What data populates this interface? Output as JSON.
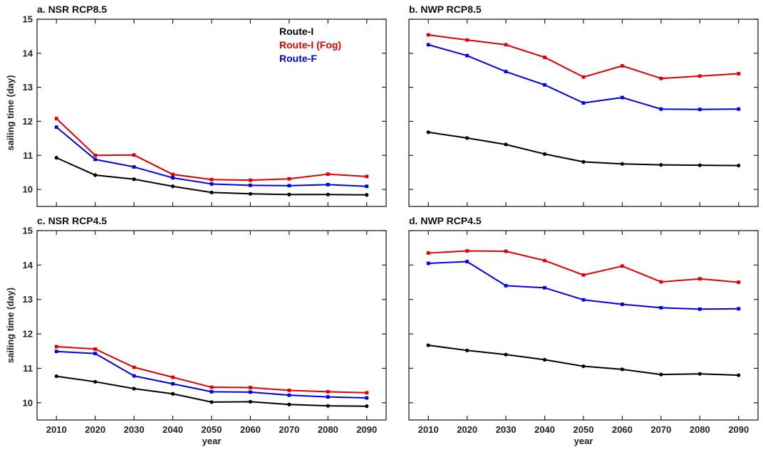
{
  "chart_data": [
    {
      "type": "line",
      "title": "a. NSR RCP8.5",
      "xlabel": "",
      "ylabel": "sailing time (day)",
      "x": [
        2010,
        2020,
        2030,
        2040,
        2050,
        2060,
        2070,
        2080,
        2090
      ],
      "xlim": [
        2005,
        2095
      ],
      "ylim": [
        9.5,
        15
      ],
      "yticks": [
        10,
        11,
        12,
        13,
        14,
        15
      ],
      "legend": "top-right",
      "series": [
        {
          "name": "Route-I",
          "color": "#000000",
          "values": [
            10.93,
            10.42,
            10.3,
            10.09,
            9.91,
            9.87,
            9.85,
            9.85,
            9.84
          ]
        },
        {
          "name": "Route-I (Fog)",
          "color": "#e00000",
          "values": [
            12.08,
            11.0,
            11.01,
            10.44,
            10.29,
            10.27,
            10.31,
            10.45,
            10.38
          ]
        },
        {
          "name": "Route-F",
          "color": "#0000e6",
          "values": [
            11.83,
            10.88,
            10.66,
            10.34,
            10.16,
            10.12,
            10.11,
            10.14,
            10.09
          ]
        }
      ]
    },
    {
      "type": "line",
      "title": "b. NWP RCP8.5",
      "xlabel": "",
      "ylabel": "",
      "x": [
        2010,
        2020,
        2030,
        2040,
        2050,
        2060,
        2070,
        2080,
        2090
      ],
      "xlim": [
        2005,
        2095
      ],
      "ylim": [
        9.5,
        15
      ],
      "yticks": [
        10,
        11,
        12,
        13,
        14,
        15
      ],
      "series": [
        {
          "name": "Route-I",
          "color": "#000000",
          "values": [
            11.68,
            11.51,
            11.32,
            11.04,
            10.81,
            10.75,
            10.72,
            10.71,
            10.7
          ]
        },
        {
          "name": "Route-I (Fog)",
          "color": "#e00000",
          "values": [
            14.54,
            14.39,
            14.25,
            13.88,
            13.3,
            13.63,
            13.26,
            13.33,
            13.4
          ]
        },
        {
          "name": "Route-F",
          "color": "#0000e6",
          "values": [
            14.25,
            13.93,
            13.46,
            13.07,
            12.54,
            12.7,
            12.36,
            12.35,
            12.36
          ]
        }
      ]
    },
    {
      "type": "line",
      "title": "c. NSR RCP4.5",
      "xlabel": "year",
      "ylabel": "sailing time (day)",
      "x": [
        2010,
        2020,
        2030,
        2040,
        2050,
        2060,
        2070,
        2080,
        2090
      ],
      "xlim": [
        2005,
        2095
      ],
      "ylim": [
        9.5,
        15
      ],
      "yticks": [
        10,
        11,
        12,
        13,
        14,
        15
      ],
      "series": [
        {
          "name": "Route-I",
          "color": "#000000",
          "values": [
            10.77,
            10.61,
            10.41,
            10.26,
            10.02,
            10.03,
            9.95,
            9.91,
            9.9
          ]
        },
        {
          "name": "Route-I (Fog)",
          "color": "#e00000",
          "values": [
            11.63,
            11.56,
            11.03,
            10.74,
            10.45,
            10.44,
            10.36,
            10.32,
            10.29
          ]
        },
        {
          "name": "Route-F",
          "color": "#0000e6",
          "values": [
            11.49,
            11.43,
            10.78,
            10.55,
            10.32,
            10.31,
            10.22,
            10.17,
            10.14
          ]
        }
      ]
    },
    {
      "type": "line",
      "title": "d. NWP RCP4.5",
      "xlabel": "year",
      "ylabel": "",
      "x": [
        2010,
        2020,
        2030,
        2040,
        2050,
        2060,
        2070,
        2080,
        2090
      ],
      "xlim": [
        2005,
        2095
      ],
      "ylim": [
        9.5,
        15
      ],
      "yticks": [
        10,
        11,
        12,
        13,
        14,
        15
      ],
      "series": [
        {
          "name": "Route-I",
          "color": "#000000",
          "values": [
            11.67,
            11.52,
            11.4,
            11.25,
            11.06,
            10.97,
            10.82,
            10.84,
            10.8
          ]
        },
        {
          "name": "Route-I (Fog)",
          "color": "#e00000",
          "values": [
            14.35,
            14.41,
            14.4,
            14.13,
            13.71,
            13.97,
            13.51,
            13.6,
            13.5
          ]
        },
        {
          "name": "Route-F",
          "color": "#0000e6",
          "values": [
            14.05,
            14.1,
            13.4,
            13.34,
            12.99,
            12.86,
            12.76,
            12.72,
            12.73
          ]
        }
      ]
    }
  ]
}
